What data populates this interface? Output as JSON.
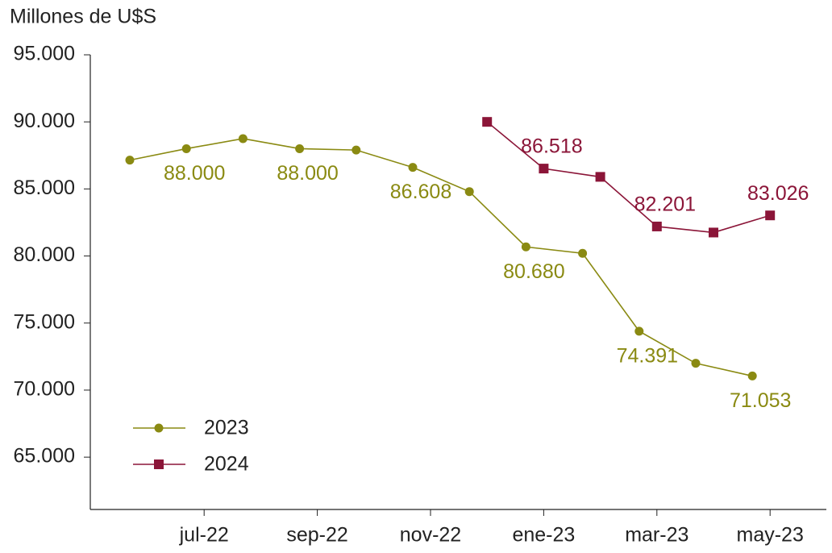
{
  "chart_data": {
    "type": "line",
    "y_axis_title": "Millones de U$S",
    "categories": [
      null,
      "jul-22",
      null,
      "sep-22",
      null,
      "nov-22",
      null,
      "ene-23",
      null,
      "mar-23",
      null,
      "may-23"
    ],
    "series": [
      {
        "name": "2023",
        "color": "#8a8a12",
        "marker": "circle",
        "values": [
          87150,
          88000,
          88750,
          88000,
          87900,
          86608,
          84800,
          80680,
          80200,
          74391,
          72000,
          71053
        ],
        "value_labels": [
          null,
          "88.000",
          null,
          "88.000",
          null,
          "86.608",
          null,
          "80.680",
          null,
          "74.391",
          null,
          "71.053"
        ]
      },
      {
        "name": "2024",
        "color": "#8b1538",
        "marker": "square",
        "values": [
          null,
          null,
          null,
          null,
          null,
          null,
          90000,
          86518,
          85900,
          82201,
          81750,
          83026
        ],
        "value_labels": [
          null,
          null,
          null,
          null,
          null,
          null,
          null,
          "86.518",
          null,
          "82.201",
          null,
          "83.026"
        ]
      }
    ],
    "ylim": [
      61100,
      95000
    ],
    "yticks": [
      {
        "value": 65000,
        "label": "65.000"
      },
      {
        "value": 70000,
        "label": "70.000"
      },
      {
        "value": 75000,
        "label": "75.000"
      },
      {
        "value": 80000,
        "label": "80.000"
      },
      {
        "value": 85000,
        "label": "85.000"
      },
      {
        "value": 90000,
        "label": "90.000"
      },
      {
        "value": 95000,
        "label": "95.000"
      }
    ],
    "grid": false,
    "legend": "lower left"
  }
}
